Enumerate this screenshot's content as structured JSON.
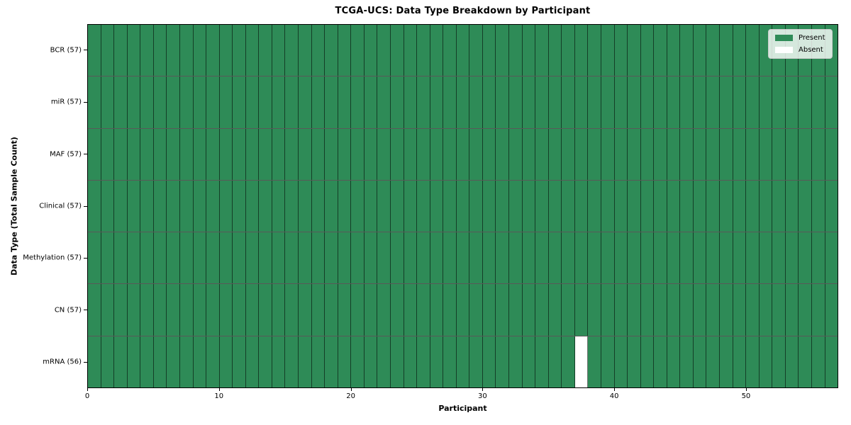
{
  "chart_data": {
    "type": "heatmap",
    "title": "TCGA-UCS: Data Type Breakdown by Participant",
    "xlabel": "Participant",
    "ylabel": "Data Type (Total Sample Count)",
    "n_participants": 57,
    "xlim": [
      0,
      57
    ],
    "x_ticks": [
      0,
      10,
      20,
      30,
      40,
      50
    ],
    "rows": [
      {
        "name": "BCR",
        "label": "BCR (57)",
        "count": 57,
        "absent_participants": []
      },
      {
        "name": "miR",
        "label": "miR (57)",
        "count": 57,
        "absent_participants": []
      },
      {
        "name": "MAF",
        "label": "MAF (57)",
        "count": 57,
        "absent_participants": []
      },
      {
        "name": "Clinical",
        "label": "Clinical (57)",
        "count": 57,
        "absent_participants": []
      },
      {
        "name": "Methylation",
        "label": "Methylation (57)",
        "count": 57,
        "absent_participants": []
      },
      {
        "name": "CN",
        "label": "CN (57)",
        "count": 57,
        "absent_participants": []
      },
      {
        "name": "mRNA",
        "label": "mRNA (56)",
        "count": 56,
        "absent_participants": [
          37
        ]
      }
    ],
    "legend": [
      {
        "label": "Present",
        "color": "#2e8b57"
      },
      {
        "label": "Absent",
        "color": "#ffffff"
      }
    ],
    "colors": {
      "present": "#2e8b57",
      "absent": "#ffffff",
      "frame": "#000000"
    },
    "legend_position": "upper right",
    "grid": "cell-borders"
  }
}
